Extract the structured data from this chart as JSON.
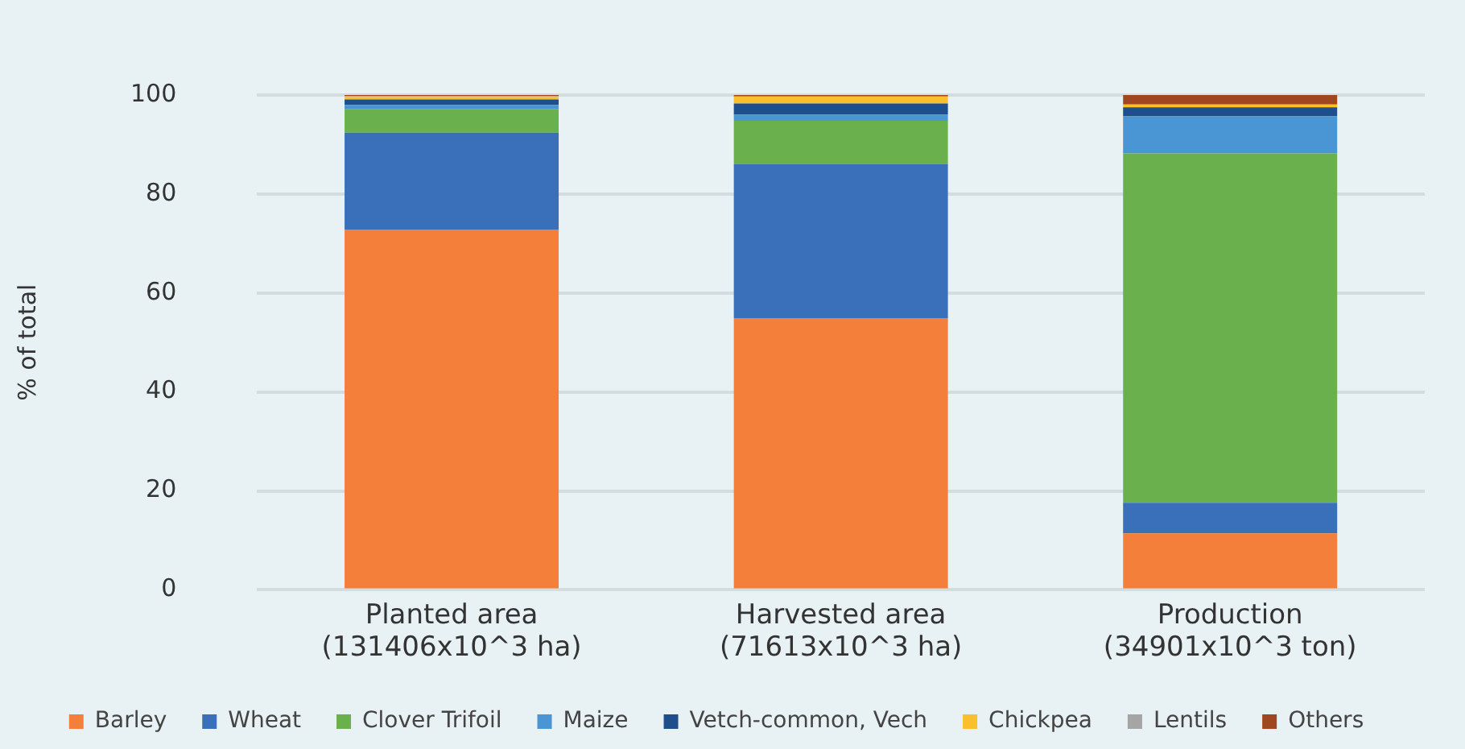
{
  "chart_data": {
    "type": "bar",
    "stacked": true,
    "ylabel": "% of total",
    "categories": [
      "Planted area\n(131406x10^3 ha)",
      "Harvested area\n(71613x10^3 ha)",
      "Production\n(34901x10^3 ton)"
    ],
    "series": [
      {
        "name": "Barley",
        "color": "#f47f3b",
        "values": [
          72.8,
          54.9,
          11.4
        ]
      },
      {
        "name": "Wheat",
        "color": "#3a6fba",
        "values": [
          19.6,
          31.2,
          6.2
        ]
      },
      {
        "name": "Clover Trifoil",
        "color": "#6ab04c",
        "values": [
          4.7,
          8.7,
          70.6
        ]
      },
      {
        "name": "Maize",
        "color": "#4a95d4",
        "values": [
          0.9,
          1.2,
          7.5
        ]
      },
      {
        "name": "Vetch-common, Vech",
        "color": "#1f4e8c",
        "values": [
          1.1,
          2.3,
          1.8
        ]
      },
      {
        "name": "Chickpea",
        "color": "#f9c02c",
        "values": [
          0.5,
          1.4,
          0.6
        ]
      },
      {
        "name": "Lentils",
        "color": "#a5a5a5",
        "values": [
          0.2,
          0,
          0
        ]
      },
      {
        "name": "Others",
        "color": "#a0471f",
        "values": [
          0.2,
          0.3,
          1.9
        ]
      }
    ],
    "ylim": [
      0,
      100
    ],
    "yticks": [
      0,
      20,
      40,
      60,
      80,
      100
    ],
    "grid": "y",
    "legend": "bottom"
  }
}
